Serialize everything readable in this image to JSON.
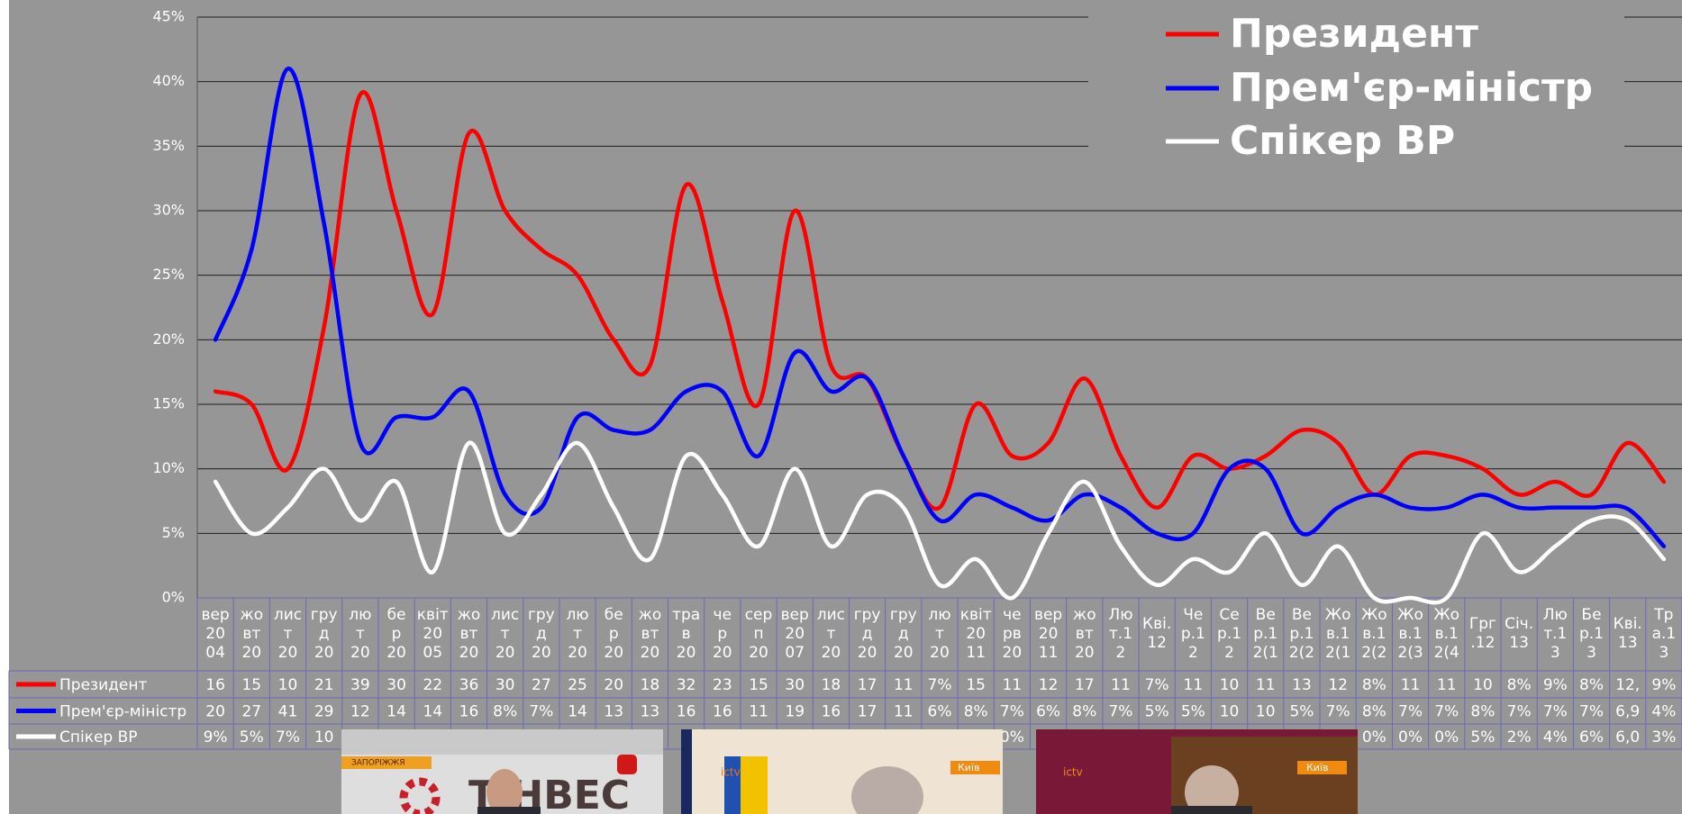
{
  "chart_data": {
    "type": "line",
    "ylim": [
      0,
      45
    ],
    "yticks": [
      {
        "value": 0,
        "label": "0%"
      },
      {
        "value": 5,
        "label": "5%"
      },
      {
        "value": 10,
        "label": "10%"
      },
      {
        "value": 15,
        "label": "15%"
      },
      {
        "value": 20,
        "label": "20%"
      },
      {
        "value": 25,
        "label": "25%"
      },
      {
        "value": 30,
        "label": "30%"
      },
      {
        "value": 35,
        "label": "35%"
      },
      {
        "value": 40,
        "label": "40%"
      },
      {
        "value": 45,
        "label": "45%"
      }
    ],
    "grid": true,
    "legend": "upper right",
    "categories": [
      "вер\n20\n04",
      "жо\nвт\n20",
      "лис\nт\n20",
      "гру\nд\n20",
      "лю\nт\n20",
      "бе\nр\n20",
      "квіт\n20\n05",
      "жо\nвт\n20",
      "лис\nт\n20",
      "гру\nд\n20",
      "лю\nт\n20",
      "бе\nр\n20",
      "жо\nвт\n20",
      "тра\nв\n20",
      "че\nр\n20",
      "сер\nп\n20",
      "вер\n20\n07",
      "лис\nт\n20",
      "гру\nд\n20",
      "гру\nд\n20",
      "лю\nт\n20",
      "квіт\n20\n11",
      "че\nрв\n20",
      "вер\n20\n11",
      "жо\nвт\n20",
      "Лю\nт.1\n2",
      "Кві.\n12",
      "Че\nр.1\n2",
      "Се\nр.1\n2",
      "Ве\nр.1\n2(1",
      "Ве\nр.1\n2(2",
      "Жо\nв.1\n2(1",
      "Жо\nв.1\n2(2",
      "Жо\nв.1\n2(3",
      "Жо\nв.1\n2(4",
      "Грг\n.12",
      "Січ.\n13",
      "Лю\nт.1\n3",
      "Бе\nр.1\n3",
      "Кві.\n13",
      "Тр\nа.1\n3"
    ],
    "series": [
      {
        "name": "Президент",
        "color": "#ff0000",
        "values": [
          16,
          15,
          10,
          21,
          39,
          30,
          22,
          36,
          30,
          27,
          25,
          20,
          18,
          32,
          23,
          15,
          30,
          18,
          17,
          11,
          7,
          15,
          11,
          12,
          17,
          11,
          7,
          11,
          10,
          11,
          13,
          12,
          8,
          11,
          11,
          10,
          8,
          9,
          8,
          12,
          9
        ],
        "value_labels": [
          "16",
          "15",
          "10",
          "21",
          "39",
          "30",
          "22",
          "36",
          "30",
          "27",
          "25",
          "20",
          "18",
          "32",
          "23",
          "15",
          "30",
          "18",
          "17",
          "11",
          "7%",
          "15",
          "11",
          "12",
          "17",
          "11",
          "7%",
          "11",
          "10",
          "11",
          "13",
          "12",
          "8%",
          "11",
          "11",
          "10",
          "8%",
          "9%",
          "8%",
          "12,",
          "9%"
        ]
      },
      {
        "name": "Прем'єр-міністр",
        "color": "#0000ff",
        "values": [
          20,
          27,
          41,
          29,
          12,
          14,
          14,
          16,
          8,
          7,
          14,
          13,
          13,
          16,
          16,
          11,
          19,
          16,
          17,
          11,
          6,
          8,
          7,
          6,
          8,
          7,
          5,
          5,
          10,
          10,
          5,
          7,
          8,
          7,
          7,
          8,
          7,
          7,
          7,
          6.9,
          4
        ],
        "value_labels": [
          "20",
          "27",
          "41",
          "29",
          "12",
          "14",
          "14",
          "16",
          "8%",
          "7%",
          "14",
          "13",
          "13",
          "16",
          "16",
          "11",
          "19",
          "16",
          "17",
          "11",
          "6%",
          "8%",
          "7%",
          "6%",
          "8%",
          "7%",
          "5%",
          "5%",
          "10",
          "10",
          "5%",
          "7%",
          "8%",
          "7%",
          "7%",
          "8%",
          "7%",
          "7%",
          "7%",
          "6,9",
          "4%"
        ]
      },
      {
        "name": "Спікер ВР",
        "color": "#ffffff",
        "values": [
          9,
          5,
          7,
          10,
          6,
          9,
          2,
          12,
          5,
          8,
          12,
          7,
          3,
          11,
          8,
          4,
          10,
          4,
          8,
          7,
          1,
          3,
          0,
          5,
          9,
          4,
          1,
          3,
          2,
          5,
          1,
          4,
          0,
          0,
          0,
          5,
          2,
          4,
          6,
          6.0,
          3
        ],
        "value_labels": [
          "9%",
          "5%",
          "7%",
          "10",
          null,
          null,
          null,
          null,
          null,
          null,
          null,
          null,
          null,
          null,
          null,
          null,
          null,
          null,
          null,
          null,
          null,
          null,
          "0%",
          null,
          null,
          null,
          null,
          null,
          null,
          null,
          null,
          null,
          "0%",
          "0%",
          "0%",
          "5%",
          "2%",
          "4%",
          "6%",
          "6,0",
          "3%"
        ]
      }
    ]
  },
  "screenshots": [
    {
      "texts": [
        "ЗАПОРІЖЖЯ",
        "ТІНВЕС"
      ]
    },
    {
      "texts": [
        "ictv",
        "Київ"
      ]
    },
    {
      "texts": [
        "ictv",
        "Київ"
      ]
    }
  ]
}
